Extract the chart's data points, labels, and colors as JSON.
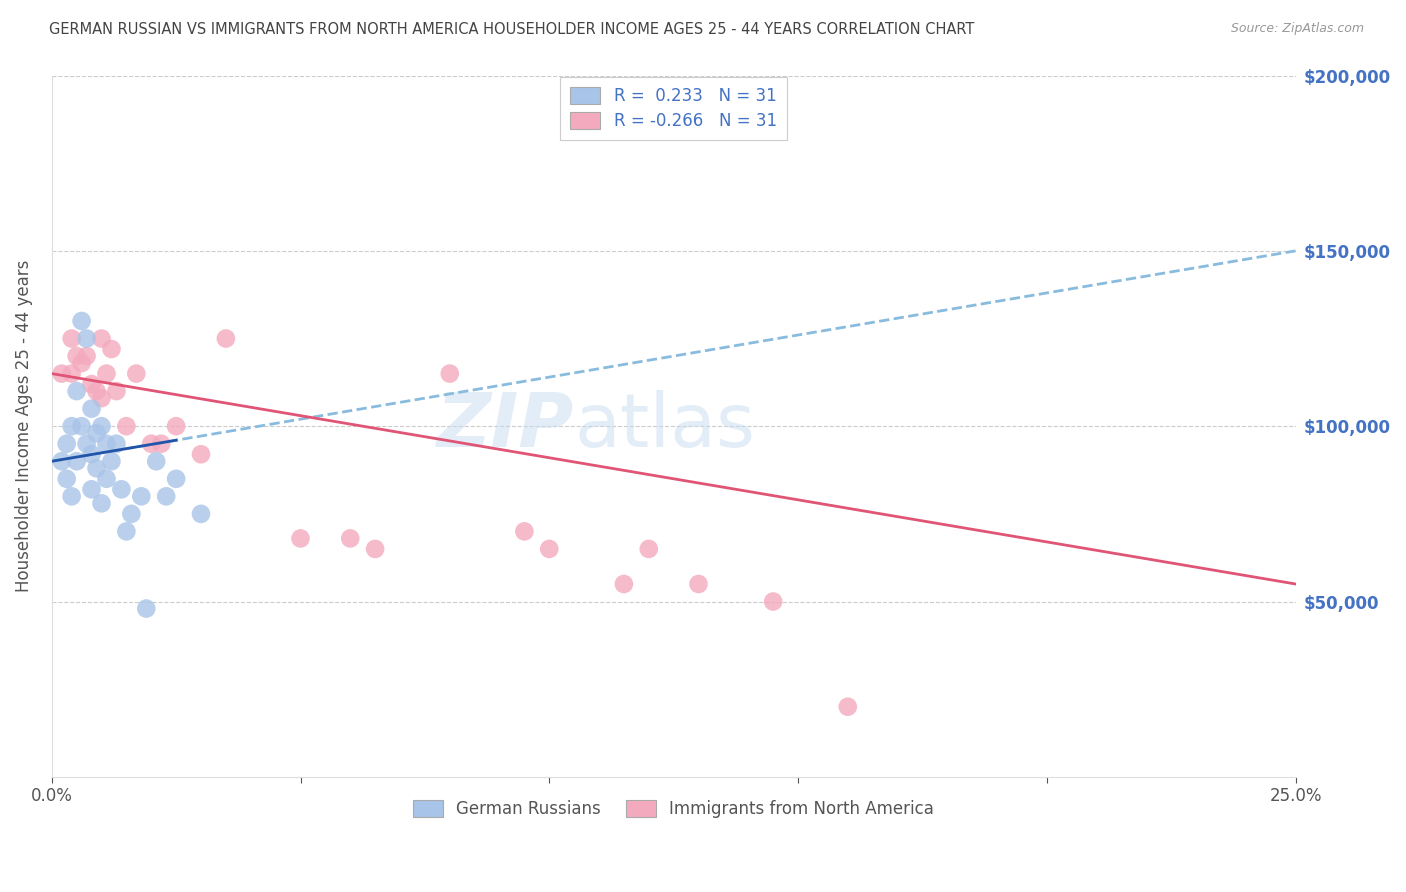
{
  "title": "GERMAN RUSSIAN VS IMMIGRANTS FROM NORTH AMERICA HOUSEHOLDER INCOME AGES 25 - 44 YEARS CORRELATION CHART",
  "source": "Source: ZipAtlas.com",
  "ylabel": "Householder Income Ages 25 - 44 years",
  "xmin": 0.0,
  "xmax": 0.25,
  "ymin": 0,
  "ymax": 200000,
  "xtick_positions": [
    0.0,
    0.05,
    0.1,
    0.15,
    0.2,
    0.25
  ],
  "xticklabels": [
    "0.0%",
    "",
    "",
    "",
    "",
    "25.0%"
  ],
  "ytick_values": [
    50000,
    100000,
    150000,
    200000
  ],
  "ytick_labels": [
    "$50,000",
    "$100,000",
    "$150,000",
    "$200,000"
  ],
  "legend_r1_text": "R =  0.233   N = 31",
  "legend_r2_text": "R = -0.266   N = 31",
  "legend_blue_label": "German Russians",
  "legend_pink_label": "Immigrants from North America",
  "watermark": "ZIPatlas",
  "blue_color": "#A8C4E8",
  "pink_color": "#F4AABE",
  "trend_blue_solid_color": "#2255AA",
  "trend_blue_dash_color": "#88BBDD",
  "trend_pink_color": "#E05575",
  "blue_points_x": [
    0.002,
    0.003,
    0.003,
    0.004,
    0.004,
    0.005,
    0.005,
    0.006,
    0.006,
    0.007,
    0.007,
    0.008,
    0.008,
    0.008,
    0.009,
    0.009,
    0.01,
    0.01,
    0.011,
    0.011,
    0.012,
    0.013,
    0.014,
    0.015,
    0.016,
    0.018,
    0.019,
    0.021,
    0.023,
    0.025,
    0.03
  ],
  "blue_points_y": [
    90000,
    95000,
    85000,
    100000,
    80000,
    110000,
    90000,
    130000,
    100000,
    125000,
    95000,
    105000,
    92000,
    82000,
    98000,
    88000,
    100000,
    78000,
    95000,
    85000,
    90000,
    95000,
    82000,
    70000,
    75000,
    80000,
    48000,
    90000,
    80000,
    85000,
    75000
  ],
  "pink_points_x": [
    0.002,
    0.004,
    0.004,
    0.005,
    0.006,
    0.007,
    0.008,
    0.009,
    0.01,
    0.01,
    0.011,
    0.012,
    0.013,
    0.015,
    0.017,
    0.02,
    0.022,
    0.025,
    0.03,
    0.035,
    0.05,
    0.06,
    0.065,
    0.08,
    0.095,
    0.1,
    0.115,
    0.12,
    0.13,
    0.145,
    0.16
  ],
  "pink_points_y": [
    115000,
    125000,
    115000,
    120000,
    118000,
    120000,
    112000,
    110000,
    125000,
    108000,
    115000,
    122000,
    110000,
    100000,
    115000,
    95000,
    95000,
    100000,
    92000,
    125000,
    68000,
    68000,
    65000,
    115000,
    70000,
    65000,
    55000,
    65000,
    55000,
    50000,
    20000
  ],
  "blue_r": 0.233,
  "pink_r": -0.266,
  "trend_blue_intercept": 90000,
  "trend_blue_slope": 240000,
  "trend_pink_intercept": 115000,
  "trend_pink_slope": -240000
}
